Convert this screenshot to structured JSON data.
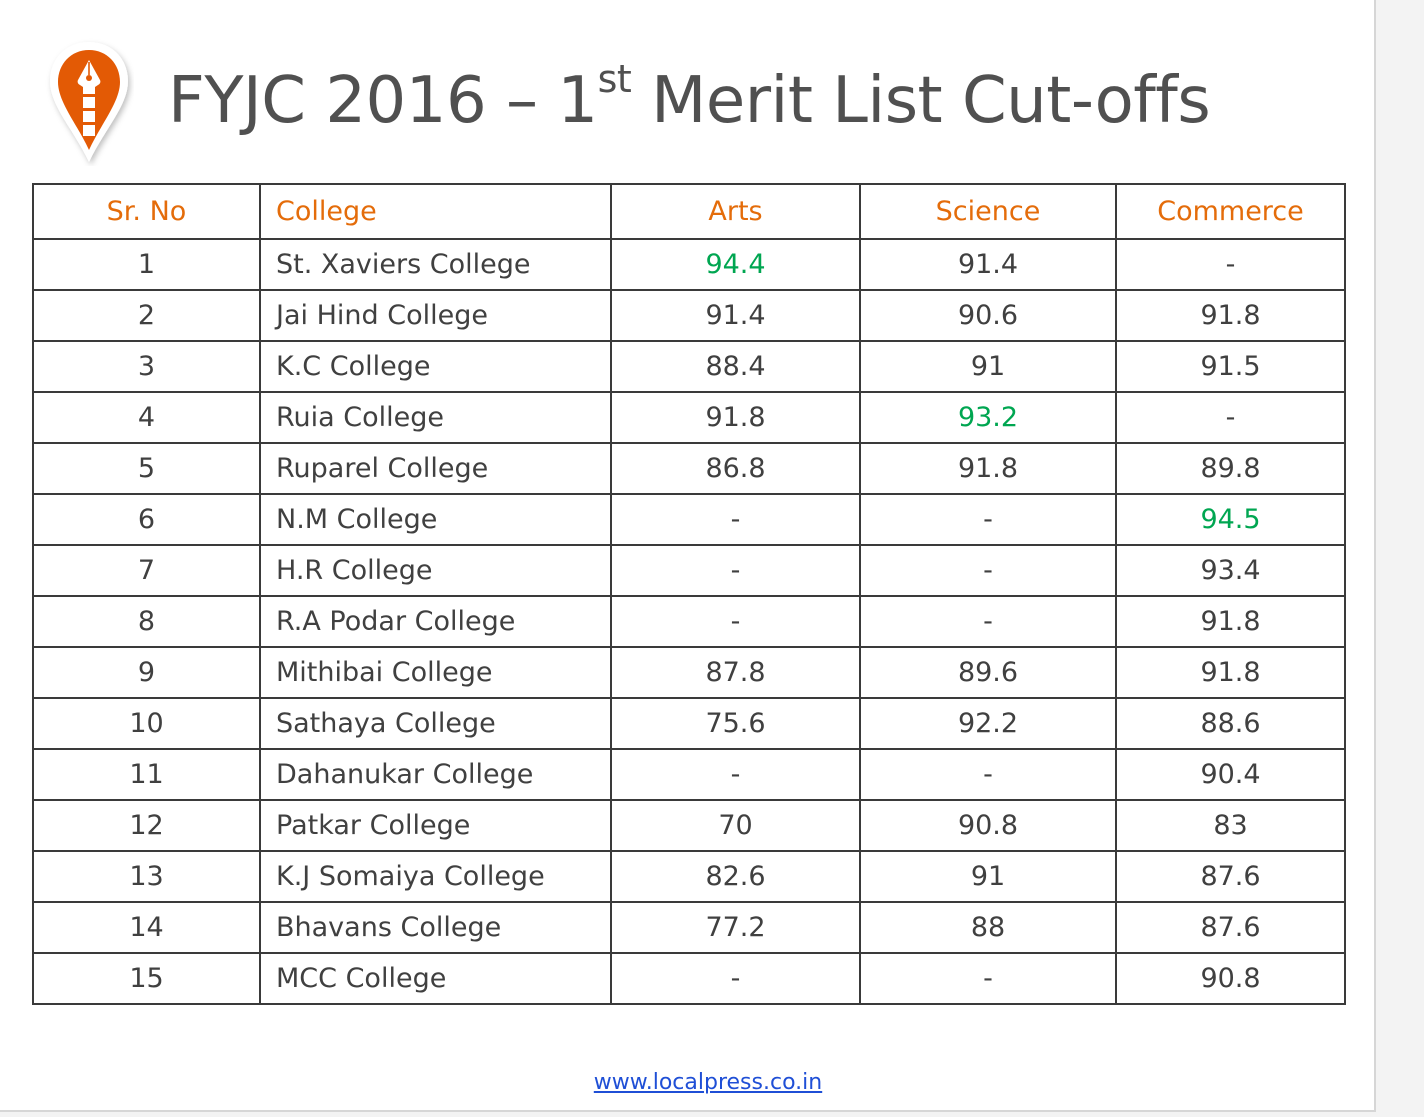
{
  "title": {
    "main": "FYJC 2016 – 1",
    "superscript": "st",
    "rest": " Merit List Cut-offs"
  },
  "brand_color": "#e35a05",
  "highlight_color": "#00a651",
  "header_color": "#e46c0a",
  "table": {
    "headers": [
      "Sr. No",
      "College",
      "Arts",
      "Science",
      "Commerce"
    ],
    "rows": [
      {
        "sr": "1",
        "college": "St. Xaviers College",
        "arts": "94.4",
        "science": "91.4",
        "commerce": "-",
        "top": "arts"
      },
      {
        "sr": "2",
        "college": "Jai Hind College",
        "arts": "91.4",
        "science": "90.6",
        "commerce": "91.8",
        "top": ""
      },
      {
        "sr": "3",
        "college": "K.C College",
        "arts": "88.4",
        "science": "91",
        "commerce": "91.5",
        "top": ""
      },
      {
        "sr": "4",
        "college": "Ruia College",
        "arts": "91.8",
        "science": "93.2",
        "commerce": "-",
        "top": "science"
      },
      {
        "sr": "5",
        "college": "Ruparel College",
        "arts": "86.8",
        "science": "91.8",
        "commerce": "89.8",
        "top": ""
      },
      {
        "sr": "6",
        "college": "N.M College",
        "arts": "-",
        "science": "-",
        "commerce": "94.5",
        "top": "commerce"
      },
      {
        "sr": "7",
        "college": "H.R College",
        "arts": "-",
        "science": "-",
        "commerce": "93.4",
        "top": ""
      },
      {
        "sr": "8",
        "college": "R.A Podar College",
        "arts": "-",
        "science": "-",
        "commerce": "91.8",
        "top": ""
      },
      {
        "sr": "9",
        "college": "Mithibai College",
        "arts": "87.8",
        "science": "89.6",
        "commerce": "91.8",
        "top": ""
      },
      {
        "sr": "10",
        "college": "Sathaya College",
        "arts": "75.6",
        "science": "92.2",
        "commerce": "88.6",
        "top": ""
      },
      {
        "sr": "11",
        "college": "Dahanukar College",
        "arts": "-",
        "science": "-",
        "commerce": "90.4",
        "top": ""
      },
      {
        "sr": "12",
        "college": "Patkar College",
        "arts": "70",
        "science": "90.8",
        "commerce": "83",
        "top": ""
      },
      {
        "sr": "13",
        "college": "K.J Somaiya College",
        "arts": "82.6",
        "science": "91",
        "commerce": "87.6",
        "top": ""
      },
      {
        "sr": "14",
        "college": "Bhavans College",
        "arts": "77.2",
        "science": "88",
        "commerce": "87.6",
        "top": ""
      },
      {
        "sr": "15",
        "college": "MCC College",
        "arts": "-",
        "science": "-",
        "commerce": "90.8",
        "top": ""
      }
    ]
  },
  "footer": {
    "link_text": "www.localpress.co.in"
  }
}
